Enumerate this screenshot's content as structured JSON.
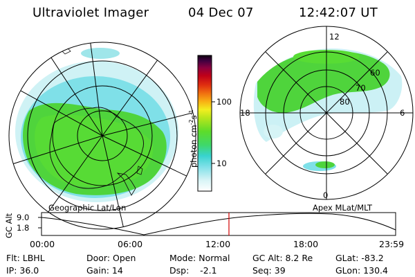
{
  "header": {
    "instrument": "Ultraviolet Imager",
    "date": "04 Dec 07",
    "time": "12:42:07 UT"
  },
  "colorbar": {
    "label_main": "photon cm",
    "label_sup1": "-2",
    "label_mid": "s",
    "label_sup2": "-1",
    "ticks": [
      "100",
      "10"
    ]
  },
  "left_map": {
    "title": "Geographic Lat/Lon"
  },
  "right_map": {
    "title": "Apex MLat/MLT",
    "mlt_labels": [
      "12",
      "18",
      "6",
      "0"
    ],
    "lat_labels": [
      "60",
      "70",
      "80"
    ]
  },
  "timeline": {
    "axis_label": "GC Alt",
    "y_ticks": [
      "9.0",
      "1.8"
    ],
    "x_ticks": [
      "00:00",
      "06:00",
      "12:00",
      "18:00",
      "23:59"
    ]
  },
  "status": {
    "filter": "Flt: LBHL",
    "door": "Door: Open",
    "mode": "Mode: Normal",
    "gc_alt": "GC Alt: 8.2 Re",
    "glat": "GLat: -83.2",
    "ip": "IP: 36.0",
    "gain": "Gain: 14",
    "dsp": "Dsp:    -2.1",
    "seq": "Seq: 39",
    "glon": "GLon: 130.4"
  },
  "colors": {
    "aurora_green": "#4fd43c",
    "aurora_cyan": "#7fe0e8",
    "marker_red": "#d00000"
  }
}
